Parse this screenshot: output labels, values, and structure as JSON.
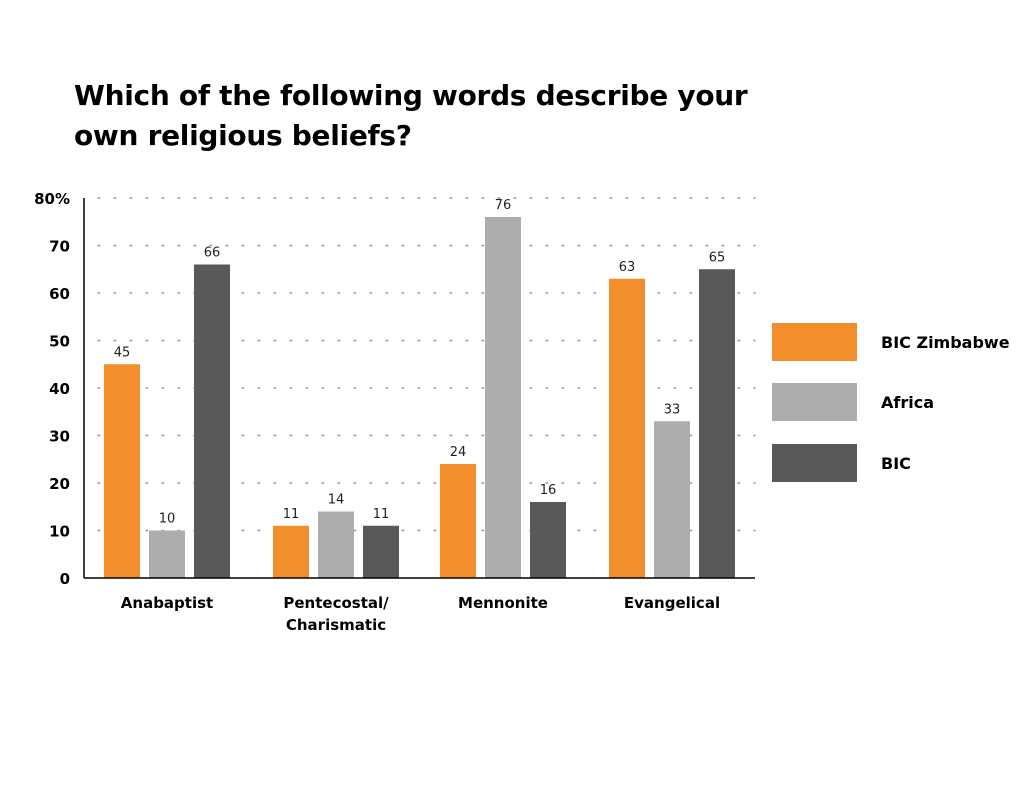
{
  "chart_data": {
    "type": "bar",
    "title": "Which of the following words describe your own religious beliefs?",
    "categories": [
      [
        "Anabaptist"
      ],
      [
        "Pentecostal/",
        "Charismatic"
      ],
      [
        "Mennonite"
      ],
      [
        "Evangelical"
      ]
    ],
    "series": [
      {
        "name": "BIC Zimbabwe",
        "color": "#F28E2B",
        "values": [
          45,
          11,
          24,
          63
        ]
      },
      {
        "name": "Africa",
        "color": "#ADADAD",
        "values": [
          10,
          14,
          76,
          33
        ]
      },
      {
        "name": "BIC",
        "color": "#595959",
        "values": [
          66,
          11,
          16,
          65
        ]
      }
    ],
    "y_ticks": [
      "0",
      "10",
      "20",
      "30",
      "40",
      "50",
      "60",
      "70",
      "80%"
    ],
    "y_tick_values": [
      0,
      10,
      20,
      30,
      40,
      50,
      60,
      70,
      80
    ],
    "ylim": [
      0,
      80
    ],
    "grid": "dotted-horizontal",
    "legend_position": "right"
  }
}
